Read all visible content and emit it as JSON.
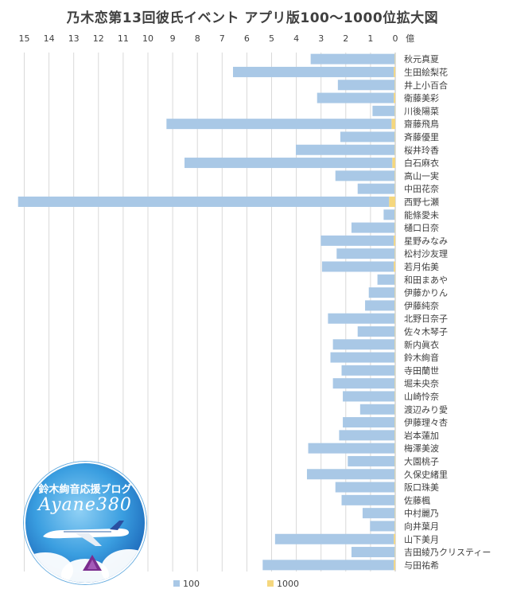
{
  "chart_data": {
    "type": "bar",
    "orientation": "horizontal",
    "title": "乃木恋第13回彼氏イベント アプリ版100～1000位拡大図",
    "unit_label": "億",
    "x_ticks": [
      "15",
      "14",
      "13",
      "12",
      "11",
      "10",
      "9",
      "8",
      "7",
      "6",
      "5",
      "4",
      "3",
      "2",
      "1",
      "0"
    ],
    "xlim": [
      0,
      15
    ],
    "x_reversed": true,
    "grid": true,
    "legend_position": "bottom",
    "categories": [
      "秋元真夏",
      "生田絵梨花",
      "井上小百合",
      "衛藤美彩",
      "川後陽菜",
      "齋藤飛鳥",
      "斉藤優里",
      "桜井玲香",
      "白石麻衣",
      "高山一実",
      "中田花奈",
      "西野七瀬",
      "能條愛未",
      "樋口日奈",
      "星野みなみ",
      "松村沙友理",
      "若月佑美",
      "和田まあや",
      "伊藤かりん",
      "伊藤純奈",
      "北野日奈子",
      "佐々木琴子",
      "新内眞衣",
      "鈴木絢音",
      "寺田蘭世",
      "堀未央奈",
      "山崎怜奈",
      "渡辺みり愛",
      "伊藤理々杏",
      "岩本蓮加",
      "梅澤美波",
      "大園桃子",
      "久保史緒里",
      "阪口珠美",
      "佐藤楓",
      "中村麗乃",
      "向井葉月",
      "山下美月",
      "吉田綾乃クリスティー",
      "与田祐希"
    ],
    "series": [
      {
        "name": "100",
        "color": "#a9c8e6",
        "values": [
          3.4,
          6.5,
          2.3,
          3.1,
          0.9,
          9.1,
          2.2,
          4.0,
          8.4,
          2.4,
          1.5,
          15.0,
          0.45,
          1.75,
          2.95,
          2.35,
          2.9,
          0.7,
          1.05,
          1.2,
          2.7,
          1.5,
          2.5,
          2.6,
          2.15,
          2.5,
          2.1,
          1.4,
          2.1,
          2.25,
          3.5,
          1.9,
          3.55,
          2.4,
          2.15,
          1.3,
          1.0,
          4.8,
          1.75,
          5.3
        ]
      },
      {
        "name": "1000",
        "color": "#f5d77e",
        "values": [
          0.02,
          0.06,
          0.02,
          0.06,
          0.02,
          0.15,
          0.02,
          0.02,
          0.12,
          0.02,
          0.02,
          0.25,
          0.02,
          0.02,
          0.06,
          0.02,
          0.06,
          0.02,
          0.02,
          0.02,
          0.02,
          0.02,
          0.02,
          0.02,
          0.02,
          0.02,
          0.02,
          0.02,
          0.02,
          0.02,
          0.02,
          0.02,
          0.02,
          0.02,
          0.02,
          0.02,
          0.02,
          0.06,
          0.02,
          0.06
        ]
      }
    ]
  },
  "logo": {
    "text_top": "鈴木絢音応援ブログ",
    "text_main": "Ayane380"
  }
}
